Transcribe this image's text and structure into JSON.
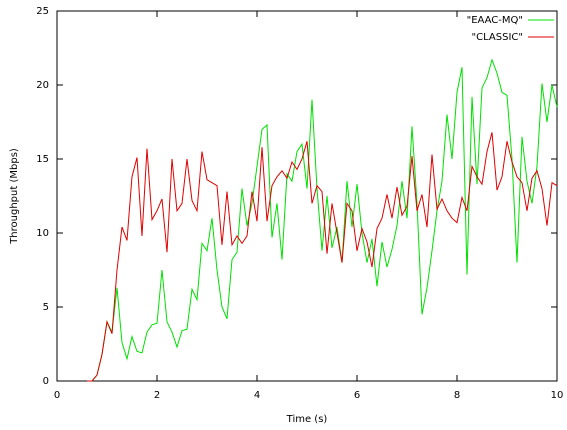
{
  "chart_data": {
    "type": "line",
    "x_label": "Time (s)",
    "y_label": "Throughput (Mbps)",
    "xlim": [
      0,
      10
    ],
    "xticks": [
      0,
      2,
      4,
      6,
      8,
      10
    ],
    "ylim": [
      0,
      25
    ],
    "yticks": [
      0,
      5,
      10,
      15,
      20,
      25
    ],
    "grid": false,
    "legend_position": "top-right",
    "x": [
      0.6,
      0.7,
      0.8,
      0.9,
      1.0,
      1.1,
      1.2,
      1.3,
      1.4,
      1.5,
      1.6,
      1.7,
      1.8,
      1.9,
      2.0,
      2.1,
      2.2,
      2.3,
      2.4,
      2.5,
      2.6,
      2.7,
      2.8,
      2.9,
      3.0,
      3.1,
      3.2,
      3.3,
      3.4,
      3.5,
      3.6,
      3.7,
      3.8,
      3.9,
      4.0,
      4.1,
      4.2,
      4.3,
      4.4,
      4.5,
      4.6,
      4.7,
      4.8,
      4.9,
      5.0,
      5.1,
      5.2,
      5.3,
      5.4,
      5.5,
      5.6,
      5.7,
      5.8,
      5.9,
      6.0,
      6.1,
      6.2,
      6.3,
      6.4,
      6.5,
      6.6,
      6.7,
      6.8,
      6.9,
      7.0,
      7.1,
      7.2,
      7.3,
      7.4,
      7.5,
      7.6,
      7.7,
      7.8,
      7.9,
      8.0,
      8.1,
      8.2,
      8.3,
      8.4,
      8.5,
      8.6,
      8.7,
      8.8,
      8.9,
      9.0,
      9.1,
      9.2,
      9.3,
      9.4,
      9.5,
      9.6,
      9.7,
      9.8,
      9.9,
      10.0
    ],
    "series": [
      {
        "name": "\"EAAC-MQ\"",
        "color": "#00e000",
        "values": [
          0,
          0,
          0.4,
          1.8,
          4,
          3.3,
          6.3,
          2.6,
          1.5,
          3,
          2,
          1.9,
          3.3,
          3.8,
          3.9,
          7.5,
          4,
          3.3,
          2.3,
          3.4,
          3.5,
          6.2,
          5.5,
          9.3,
          8.8,
          11,
          7.5,
          5,
          4.2,
          8.2,
          8.7,
          13,
          10.5,
          12,
          14.5,
          17,
          17.3,
          9.7,
          12,
          8.2,
          14,
          13.5,
          15.5,
          16,
          13,
          19,
          13,
          8.8,
          12.5,
          9,
          10.4,
          8,
          13.5,
          10.4,
          13.3,
          10,
          8,
          9.6,
          6.4,
          9.4,
          7.7,
          8.9,
          10.5,
          13.5,
          11,
          17.2,
          12,
          4.5,
          6.3,
          8.8,
          11.5,
          13.5,
          18,
          15,
          19.5,
          21.2,
          7.2,
          19.2,
          13.3,
          19.8,
          20.5,
          21.7,
          20.8,
          19.5,
          19.3,
          15,
          8,
          16.5,
          13.5,
          12,
          14.5,
          20.1,
          17.5,
          20,
          18.5
        ]
      },
      {
        "name": "\"CLASSIC\"",
        "color": "#e00000",
        "values": [
          0,
          0,
          0.4,
          1.8,
          4,
          3.2,
          7.5,
          10.4,
          9.5,
          13.8,
          15.1,
          9.8,
          15.7,
          10.9,
          11.5,
          12.3,
          8.7,
          15,
          11.5,
          12,
          15,
          12.2,
          11.5,
          15.5,
          13.6,
          13.4,
          13.2,
          9.2,
          12.8,
          9.2,
          9.8,
          9.3,
          9.8,
          12.8,
          10.8,
          15.8,
          10.8,
          13.2,
          13.8,
          14.2,
          13.7,
          14.8,
          14.3,
          15,
          16.2,
          12,
          13.2,
          12.8,
          8.6,
          12,
          10,
          8,
          12,
          11.5,
          8.8,
          10.3,
          9.4,
          7.7,
          10.3,
          11,
          12.6,
          11,
          13.1,
          11.2,
          11.8,
          15.2,
          11.5,
          12.6,
          10.4,
          15.3,
          11.6,
          12.3,
          11.5,
          11,
          10.7,
          12.4,
          11.5,
          14.5,
          13.8,
          13.3,
          15.5,
          16.8,
          12.9,
          13.8,
          16.2,
          14.8,
          13.8,
          13.4,
          11.5,
          13.7,
          14.2,
          13,
          10.5,
          13.4,
          13.2
        ]
      }
    ]
  }
}
